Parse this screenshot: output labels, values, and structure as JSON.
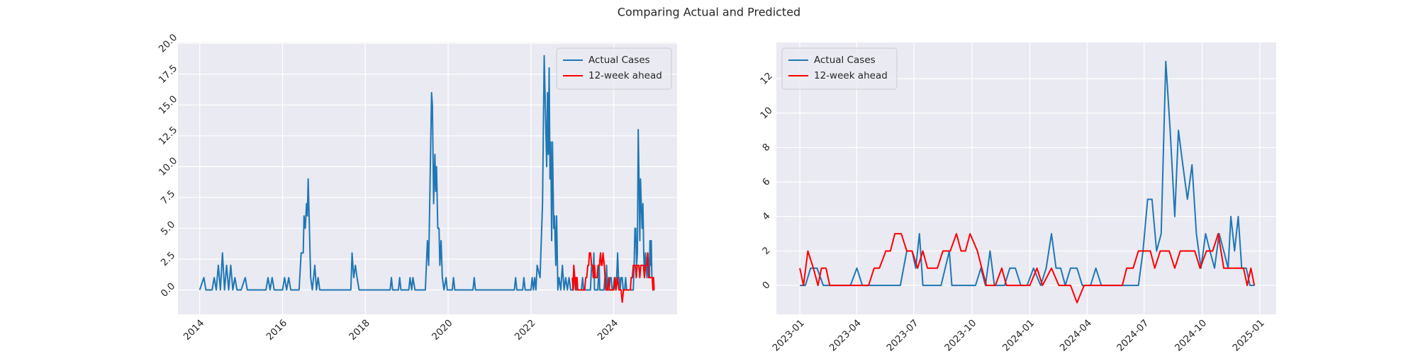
{
  "title": "Comparing Actual and Predicted",
  "chart_data": [
    {
      "type": "line",
      "legend": "upper right",
      "grid": true,
      "xlim": [
        2013.475,
        2025.53
      ],
      "ylim": [
        -1.98,
        20.07
      ],
      "xticks": [
        2014,
        2016,
        2018,
        2020,
        2022,
        2024
      ],
      "yticks": [
        {
          "value": 0,
          "label": "0.0"
        },
        {
          "value": 2.5,
          "label": "2.5"
        },
        {
          "value": 5,
          "label": "5.0"
        },
        {
          "value": 7.5,
          "label": "7.5"
        },
        {
          "value": 10,
          "label": "10.0"
        },
        {
          "value": 12.5,
          "label": "12.5"
        },
        {
          "value": 15,
          "label": "15.0"
        },
        {
          "value": 17.5,
          "label": "17.5"
        },
        {
          "value": 20,
          "label": "20.0"
        }
      ],
      "series": [
        {
          "name": "Actual Cases",
          "color": "#1f77b4",
          "x": [
            2014.0,
            2014.1,
            2014.15,
            2014.3,
            2014.35,
            2014.4,
            2014.45,
            2014.5,
            2014.55,
            2014.6,
            2014.65,
            2014.7,
            2014.75,
            2014.8,
            2014.85,
            2014.9,
            2015.0,
            2015.1,
            2015.15,
            2015.6,
            2015.65,
            2015.7,
            2015.75,
            2015.8,
            2016.0,
            2016.05,
            2016.1,
            2016.15,
            2016.2,
            2016.4,
            2016.45,
            2016.5,
            2016.52,
            2016.55,
            2016.58,
            2016.6,
            2016.62,
            2016.65,
            2016.68,
            2016.72,
            2016.78,
            2016.82,
            2016.86,
            2016.9,
            2017.65,
            2017.68,
            2017.72,
            2017.76,
            2017.8,
            2017.85,
            2018.6,
            2018.63,
            2018.66,
            2018.8,
            2018.83,
            2018.86,
            2019.05,
            2019.08,
            2019.12,
            2019.15,
            2019.2,
            2019.45,
            2019.5,
            2019.53,
            2019.56,
            2019.6,
            2019.62,
            2019.65,
            2019.68,
            2019.7,
            2019.72,
            2019.75,
            2019.78,
            2019.8,
            2019.83,
            2019.86,
            2019.9,
            2019.95,
            2019.98,
            2020.1,
            2020.13,
            2020.16,
            2020.6,
            2020.63,
            2020.66,
            2021.6,
            2021.63,
            2021.66,
            2021.8,
            2021.83,
            2021.86,
            2022.0,
            2022.03,
            2022.06,
            2022.09,
            2022.12,
            2022.15,
            2022.22,
            2022.28,
            2022.32,
            2022.38,
            2022.4,
            2022.42,
            2022.44,
            2022.46,
            2022.48,
            2022.5,
            2022.52,
            2022.55,
            2022.57,
            2022.6,
            2022.62,
            2022.65,
            2022.68,
            2022.72,
            2022.76,
            2022.8,
            2022.84,
            2022.88,
            2022.92,
            2022.96,
            2023.0,
            2023.024,
            2023.047,
            2023.075,
            2023.102,
            2023.22,
            2023.248,
            2023.272,
            2023.437,
            2023.465,
            2023.488,
            2023.504,
            2023.52,
            2023.535,
            2023.614,
            2023.65,
            2023.661,
            2023.764,
            2023.787,
            2023.807,
            2023.827,
            2023.846,
            2023.89,
            2023.913,
            2023.937,
            2023.961,
            2023.988,
            2024.016,
            2024.047,
            2024.071,
            2024.094,
            2024.114,
            2024.134,
            2024.154,
            2024.177,
            2024.205,
            2024.228,
            2024.264,
            2024.287,
            2024.311,
            2024.472,
            2024.492,
            2024.512,
            2024.531,
            2024.551,
            2024.571,
            2024.591,
            2024.61,
            2024.63,
            2024.646,
            2024.665,
            2024.685,
            2024.705,
            2024.724,
            2024.744,
            2024.764,
            2024.783,
            2024.803,
            2024.823,
            2024.843,
            2024.862,
            2024.874,
            2024.89,
            2024.906,
            2024.921,
            2024.941,
            2024.957,
            2024.976
          ],
          "values": [
            0,
            1,
            0,
            0,
            1,
            0,
            2,
            0,
            3,
            0,
            2,
            0,
            2,
            0,
            1,
            0,
            0,
            1,
            0,
            0,
            1,
            0,
            1,
            0,
            0,
            1,
            0,
            1,
            0,
            0,
            3,
            3,
            6,
            5,
            7,
            6,
            9,
            5,
            1,
            0,
            2,
            0,
            1,
            0,
            0,
            3,
            1,
            2,
            1,
            0,
            0,
            1,
            0,
            0,
            1,
            0,
            0,
            1,
            0,
            1,
            0,
            0,
            4,
            2,
            8,
            16,
            15,
            7,
            11,
            8,
            10,
            5,
            5,
            2,
            4,
            1,
            0,
            1,
            0,
            0,
            1,
            0,
            0,
            1,
            0,
            0,
            1,
            0,
            0,
            1,
            0,
            0,
            1,
            0,
            1,
            0,
            2,
            1,
            7,
            19,
            10,
            16,
            11,
            18,
            9,
            12,
            4,
            12,
            5,
            6,
            2,
            6,
            0,
            1,
            0,
            2,
            0,
            1,
            0,
            1,
            0,
            0,
            0,
            1,
            1,
            0,
            0,
            1,
            0,
            0,
            2,
            2,
            1,
            3,
            0,
            0,
            2,
            0,
            0,
            1,
            0,
            2,
            0,
            0,
            1,
            1,
            0,
            0,
            1,
            0,
            1,
            3,
            1,
            1,
            0,
            1,
            1,
            0,
            0,
            1,
            0,
            0,
            2,
            5,
            5,
            2,
            3,
            13,
            9,
            4,
            9,
            7,
            5,
            7,
            3,
            1,
            3,
            2,
            1,
            3,
            2,
            1,
            4,
            2,
            4,
            1,
            1,
            0,
            0
          ]
        },
        {
          "name": "12-week ahead",
          "color": "#ff0000",
          "x": [
            2023.0,
            2023.016,
            2023.035,
            2023.059,
            2023.079,
            2023.094,
            2023.114,
            2023.13,
            2023.299,
            2023.323,
            2023.346,
            2023.374,
            2023.394,
            2023.413,
            2023.441,
            2023.465,
            2023.488,
            2023.512,
            2023.535,
            2023.555,
            2023.575,
            2023.598,
            2023.622,
            2023.654,
            2023.681,
            2023.701,
            2023.72,
            2023.74,
            2023.772,
            2023.791,
            2023.811,
            2023.85,
            2023.878,
            2023.898,
            2024.0,
            2024.031,
            2024.055,
            2024.094,
            2024.126,
            2024.177,
            2024.205,
            2024.236,
            2024.402,
            2024.421,
            2024.449,
            2024.472,
            2024.5,
            2024.524,
            2024.543,
            2024.567,
            2024.606,
            2024.63,
            2024.654,
            2024.717,
            2024.74,
            2024.768,
            2024.795,
            2024.819,
            2024.843,
            2024.882,
            2024.906,
            2024.929,
            2024.945,
            2024.961,
            2024.976
          ],
          "values": [
            1,
            0,
            2,
            1,
            0,
            1,
            1,
            0,
            0,
            1,
            1,
            2,
            2,
            3,
            3,
            2,
            2,
            1,
            2,
            1,
            1,
            1,
            2,
            2,
            3,
            2,
            2,
            3,
            2,
            1,
            0,
            0,
            1,
            0,
            0,
            1,
            0,
            1,
            0,
            0,
            -1,
            0,
            0,
            1,
            1,
            2,
            2,
            2,
            1,
            2,
            2,
            1,
            2,
            2,
            1,
            2,
            2,
            3,
            1,
            1,
            1,
            1,
            0,
            1,
            0
          ]
        }
      ]
    },
    {
      "type": "line",
      "legend": "upper left",
      "grid": true,
      "xlim": [
        2022.898,
        2025.071
      ],
      "ylim": [
        -1.68,
        14.1
      ],
      "xticks": [
        {
          "value": 2023.0,
          "label": "2023-01"
        },
        {
          "value": 2023.247,
          "label": "2023-04"
        },
        {
          "value": 2023.496,
          "label": "2023-07"
        },
        {
          "value": 2023.748,
          "label": "2023-10"
        },
        {
          "value": 2024.0,
          "label": "2024-01"
        },
        {
          "value": 2024.249,
          "label": "2024-04"
        },
        {
          "value": 2024.497,
          "label": "2024-07"
        },
        {
          "value": 2024.749,
          "label": "2024-10"
        },
        {
          "value": 2025.0,
          "label": "2025-01"
        }
      ],
      "yticks": [
        0,
        2,
        4,
        6,
        8,
        10,
        12
      ],
      "series": [
        {
          "name": "Actual Cases",
          "color": "#1f77b4",
          "x": [
            2023.0,
            2023.024,
            2023.047,
            2023.075,
            2023.102,
            2023.22,
            2023.248,
            2023.272,
            2023.437,
            2023.465,
            2023.488,
            2023.504,
            2023.52,
            2023.535,
            2023.614,
            2023.65,
            2023.661,
            2023.764,
            2023.787,
            2023.807,
            2023.827,
            2023.846,
            2023.89,
            2023.913,
            2023.937,
            2023.961,
            2023.988,
            2024.016,
            2024.047,
            2024.071,
            2024.094,
            2024.114,
            2024.134,
            2024.154,
            2024.177,
            2024.205,
            2024.228,
            2024.264,
            2024.287,
            2024.311,
            2024.472,
            2024.492,
            2024.512,
            2024.531,
            2024.551,
            2024.571,
            2024.591,
            2024.61,
            2024.63,
            2024.646,
            2024.665,
            2024.685,
            2024.705,
            2024.724,
            2024.744,
            2024.764,
            2024.783,
            2024.803,
            2024.823,
            2024.843,
            2024.862,
            2024.874,
            2024.89,
            2024.906,
            2024.921,
            2024.941,
            2024.957,
            2024.976
          ],
          "values": [
            0,
            0,
            1,
            1,
            0,
            0,
            1,
            0,
            0,
            2,
            2,
            1,
            3,
            0,
            0,
            2,
            0,
            0,
            1,
            0,
            2,
            0,
            0,
            1,
            1,
            0,
            0,
            1,
            0,
            1,
            3,
            1,
            1,
            0,
            1,
            1,
            0,
            0,
            1,
            0,
            0,
            2,
            5,
            5,
            2,
            3,
            13,
            9,
            4,
            9,
            7,
            5,
            7,
            3,
            1,
            3,
            2,
            1,
            3,
            2,
            1,
            4,
            2,
            4,
            1,
            1,
            0,
            0
          ]
        },
        {
          "name": "12-week ahead",
          "color": "#ff0000",
          "x": [
            2023.0,
            2023.016,
            2023.035,
            2023.059,
            2023.079,
            2023.094,
            2023.114,
            2023.13,
            2023.299,
            2023.323,
            2023.346,
            2023.374,
            2023.394,
            2023.413,
            2023.441,
            2023.465,
            2023.488,
            2023.512,
            2023.535,
            2023.555,
            2023.575,
            2023.598,
            2023.622,
            2023.654,
            2023.681,
            2023.701,
            2023.72,
            2023.74,
            2023.772,
            2023.791,
            2023.811,
            2023.85,
            2023.878,
            2023.898,
            2024.0,
            2024.031,
            2024.055,
            2024.094,
            2024.126,
            2024.177,
            2024.205,
            2024.236,
            2024.402,
            2024.421,
            2024.449,
            2024.472,
            2024.5,
            2024.524,
            2024.543,
            2024.567,
            2024.606,
            2024.63,
            2024.654,
            2024.717,
            2024.74,
            2024.768,
            2024.795,
            2024.819,
            2024.843,
            2024.882,
            2024.906,
            2024.929,
            2024.945,
            2024.961,
            2024.976
          ],
          "values": [
            1,
            0,
            2,
            1,
            0,
            1,
            1,
            0,
            0,
            1,
            1,
            2,
            2,
            3,
            3,
            2,
            2,
            1,
            2,
            1,
            1,
            1,
            2,
            2,
            3,
            2,
            2,
            3,
            2,
            1,
            0,
            0,
            1,
            0,
            0,
            1,
            0,
            1,
            0,
            0,
            -1,
            0,
            0,
            1,
            1,
            2,
            2,
            2,
            1,
            2,
            2,
            1,
            2,
            2,
            1,
            2,
            2,
            3,
            1,
            1,
            1,
            1,
            0,
            1,
            0
          ]
        }
      ]
    }
  ]
}
